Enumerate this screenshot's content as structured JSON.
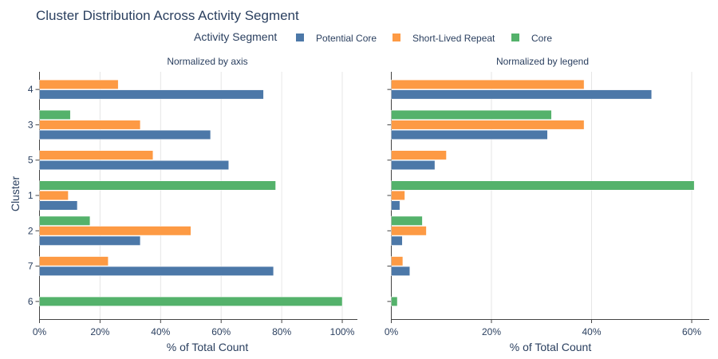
{
  "chart_data": {
    "type": "bar",
    "orientation": "horizontal",
    "title": "Cluster Distribution Across Activity Segment",
    "legend": {
      "title": "Activity Segment",
      "placement": "top-center",
      "entries": [
        {
          "name": "Potential Core",
          "color": "#4c78a8"
        },
        {
          "name": "Short-Lived Repeat",
          "color": "#fd9a44"
        },
        {
          "name": "Core",
          "color": "#54b26b"
        }
      ]
    },
    "ylabel": "Cluster",
    "categories": [
      "4",
      "3",
      "5",
      "1",
      "2",
      "7",
      "6"
    ],
    "panels": [
      {
        "subtitle": "Normalized by axis",
        "xlabel": "% of Total Count",
        "xlim": [
          0,
          105
        ],
        "xticks": [
          0,
          20,
          40,
          60,
          80,
          100
        ],
        "xtick_labels": [
          "0%",
          "20%",
          "40%",
          "60%",
          "80%",
          "100%"
        ],
        "series": [
          {
            "name": "Potential Core",
            "values": [
              74,
              56.5,
              62.5,
              12.5,
              33.3,
              77.3,
              null
            ]
          },
          {
            "name": "Short-Lived Repeat",
            "values": [
              26,
              33.3,
              37.5,
              9.5,
              50,
              22.7,
              null
            ]
          },
          {
            "name": "Core",
            "values": [
              null,
              10.2,
              null,
              78,
              16.7,
              null,
              100
            ]
          }
        ]
      },
      {
        "subtitle": "Normalized by legend",
        "xlabel": "% of Total Count",
        "xlim": [
          0,
          63.5
        ],
        "xticks": [
          0,
          20,
          40,
          60
        ],
        "xtick_labels": [
          "0%",
          "20%",
          "40%",
          "60%"
        ],
        "series": [
          {
            "name": "Potential Core",
            "values": [
              52,
              31.2,
              8.7,
              1.7,
              2.2,
              3.7,
              null
            ]
          },
          {
            "name": "Short-Lived Repeat",
            "values": [
              38.5,
              38.5,
              11,
              2.7,
              7,
              2.3,
              null
            ]
          },
          {
            "name": "Core",
            "values": [
              null,
              32,
              null,
              60.5,
              6.2,
              null,
              1.2
            ]
          }
        ]
      }
    ]
  }
}
